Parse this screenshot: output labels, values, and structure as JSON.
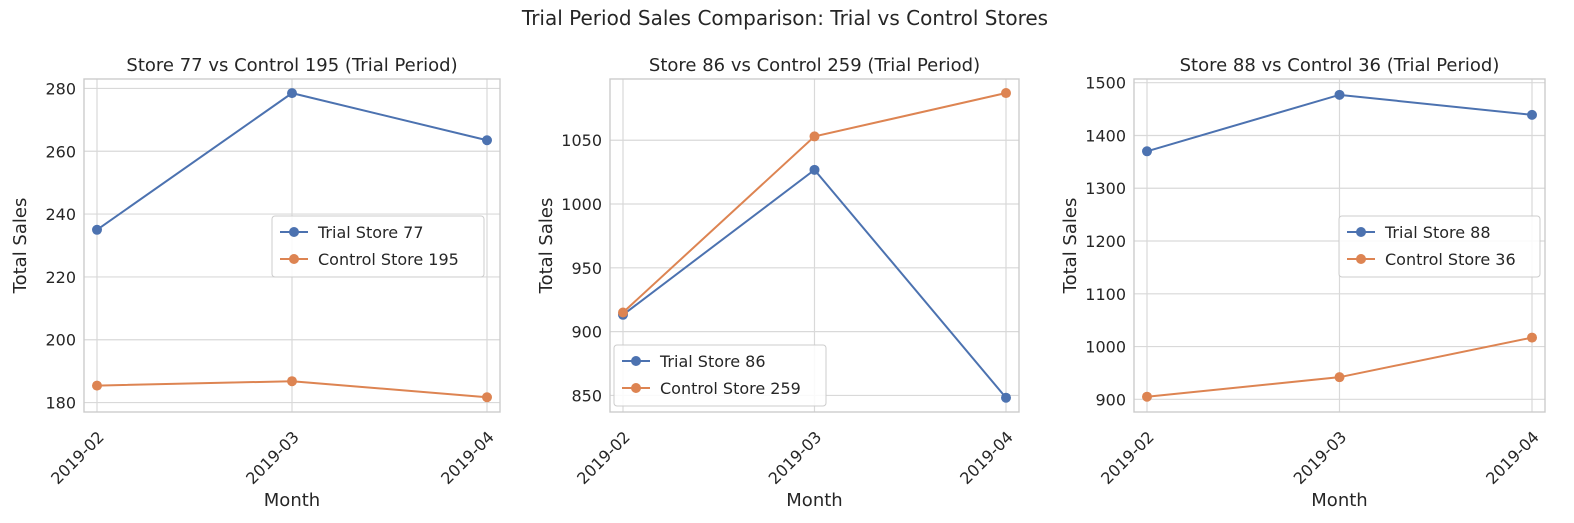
{
  "figure_title": "Trial Period Sales Comparison: Trial vs Control Stores",
  "colors": {
    "trial": "#4c72b0",
    "control": "#dd8452",
    "grid": "#d9d9d9",
    "spine": "#cccccc"
  },
  "chart_data": [
    {
      "type": "line",
      "title": "Store 77 vs Control 195 (Trial Period)",
      "xlabel": "Month",
      "ylabel": "Total Sales",
      "x": [
        "2019-02",
        "2019-03",
        "2019-04"
      ],
      "yticks": [
        180,
        200,
        220,
        240,
        260,
        280
      ],
      "ylim": [
        177,
        283
      ],
      "grid": true,
      "legend_position": "center-right",
      "series": [
        {
          "name": "Trial Store 77",
          "values": [
            235.0,
            278.5,
            263.5
          ]
        },
        {
          "name": "Control Store 195",
          "values": [
            185.4,
            186.8,
            181.7
          ]
        }
      ]
    },
    {
      "type": "line",
      "title": "Store 86 vs Control 259 (Trial Period)",
      "xlabel": "Month",
      "ylabel": "Total Sales",
      "x": [
        "2019-02",
        "2019-03",
        "2019-04"
      ],
      "yticks": [
        850,
        900,
        950,
        1000,
        1050
      ],
      "ylim": [
        837,
        1098
      ],
      "grid": true,
      "legend_position": "lower-left",
      "series": [
        {
          "name": "Trial Store 86",
          "values": [
            913.2,
            1026.8,
            848.2
          ]
        },
        {
          "name": "Control Store 259",
          "values": [
            915.0,
            1053.0,
            1087.0
          ]
        }
      ]
    },
    {
      "type": "line",
      "title": "Store 88 vs Control 36 (Trial Period)",
      "xlabel": "Month",
      "ylabel": "Total Sales",
      "x": [
        "2019-02",
        "2019-03",
        "2019-04"
      ],
      "yticks": [
        900,
        1000,
        1100,
        1200,
        1300,
        1400,
        1500
      ],
      "ylim": [
        876,
        1507
      ],
      "grid": true,
      "legend_position": "center-right",
      "series": [
        {
          "name": "Trial Store 88",
          "values": [
            1370.0,
            1477.0,
            1439.0
          ]
        },
        {
          "name": "Control Store 36",
          "values": [
            905.0,
            942.0,
            1017.0
          ]
        }
      ]
    }
  ]
}
